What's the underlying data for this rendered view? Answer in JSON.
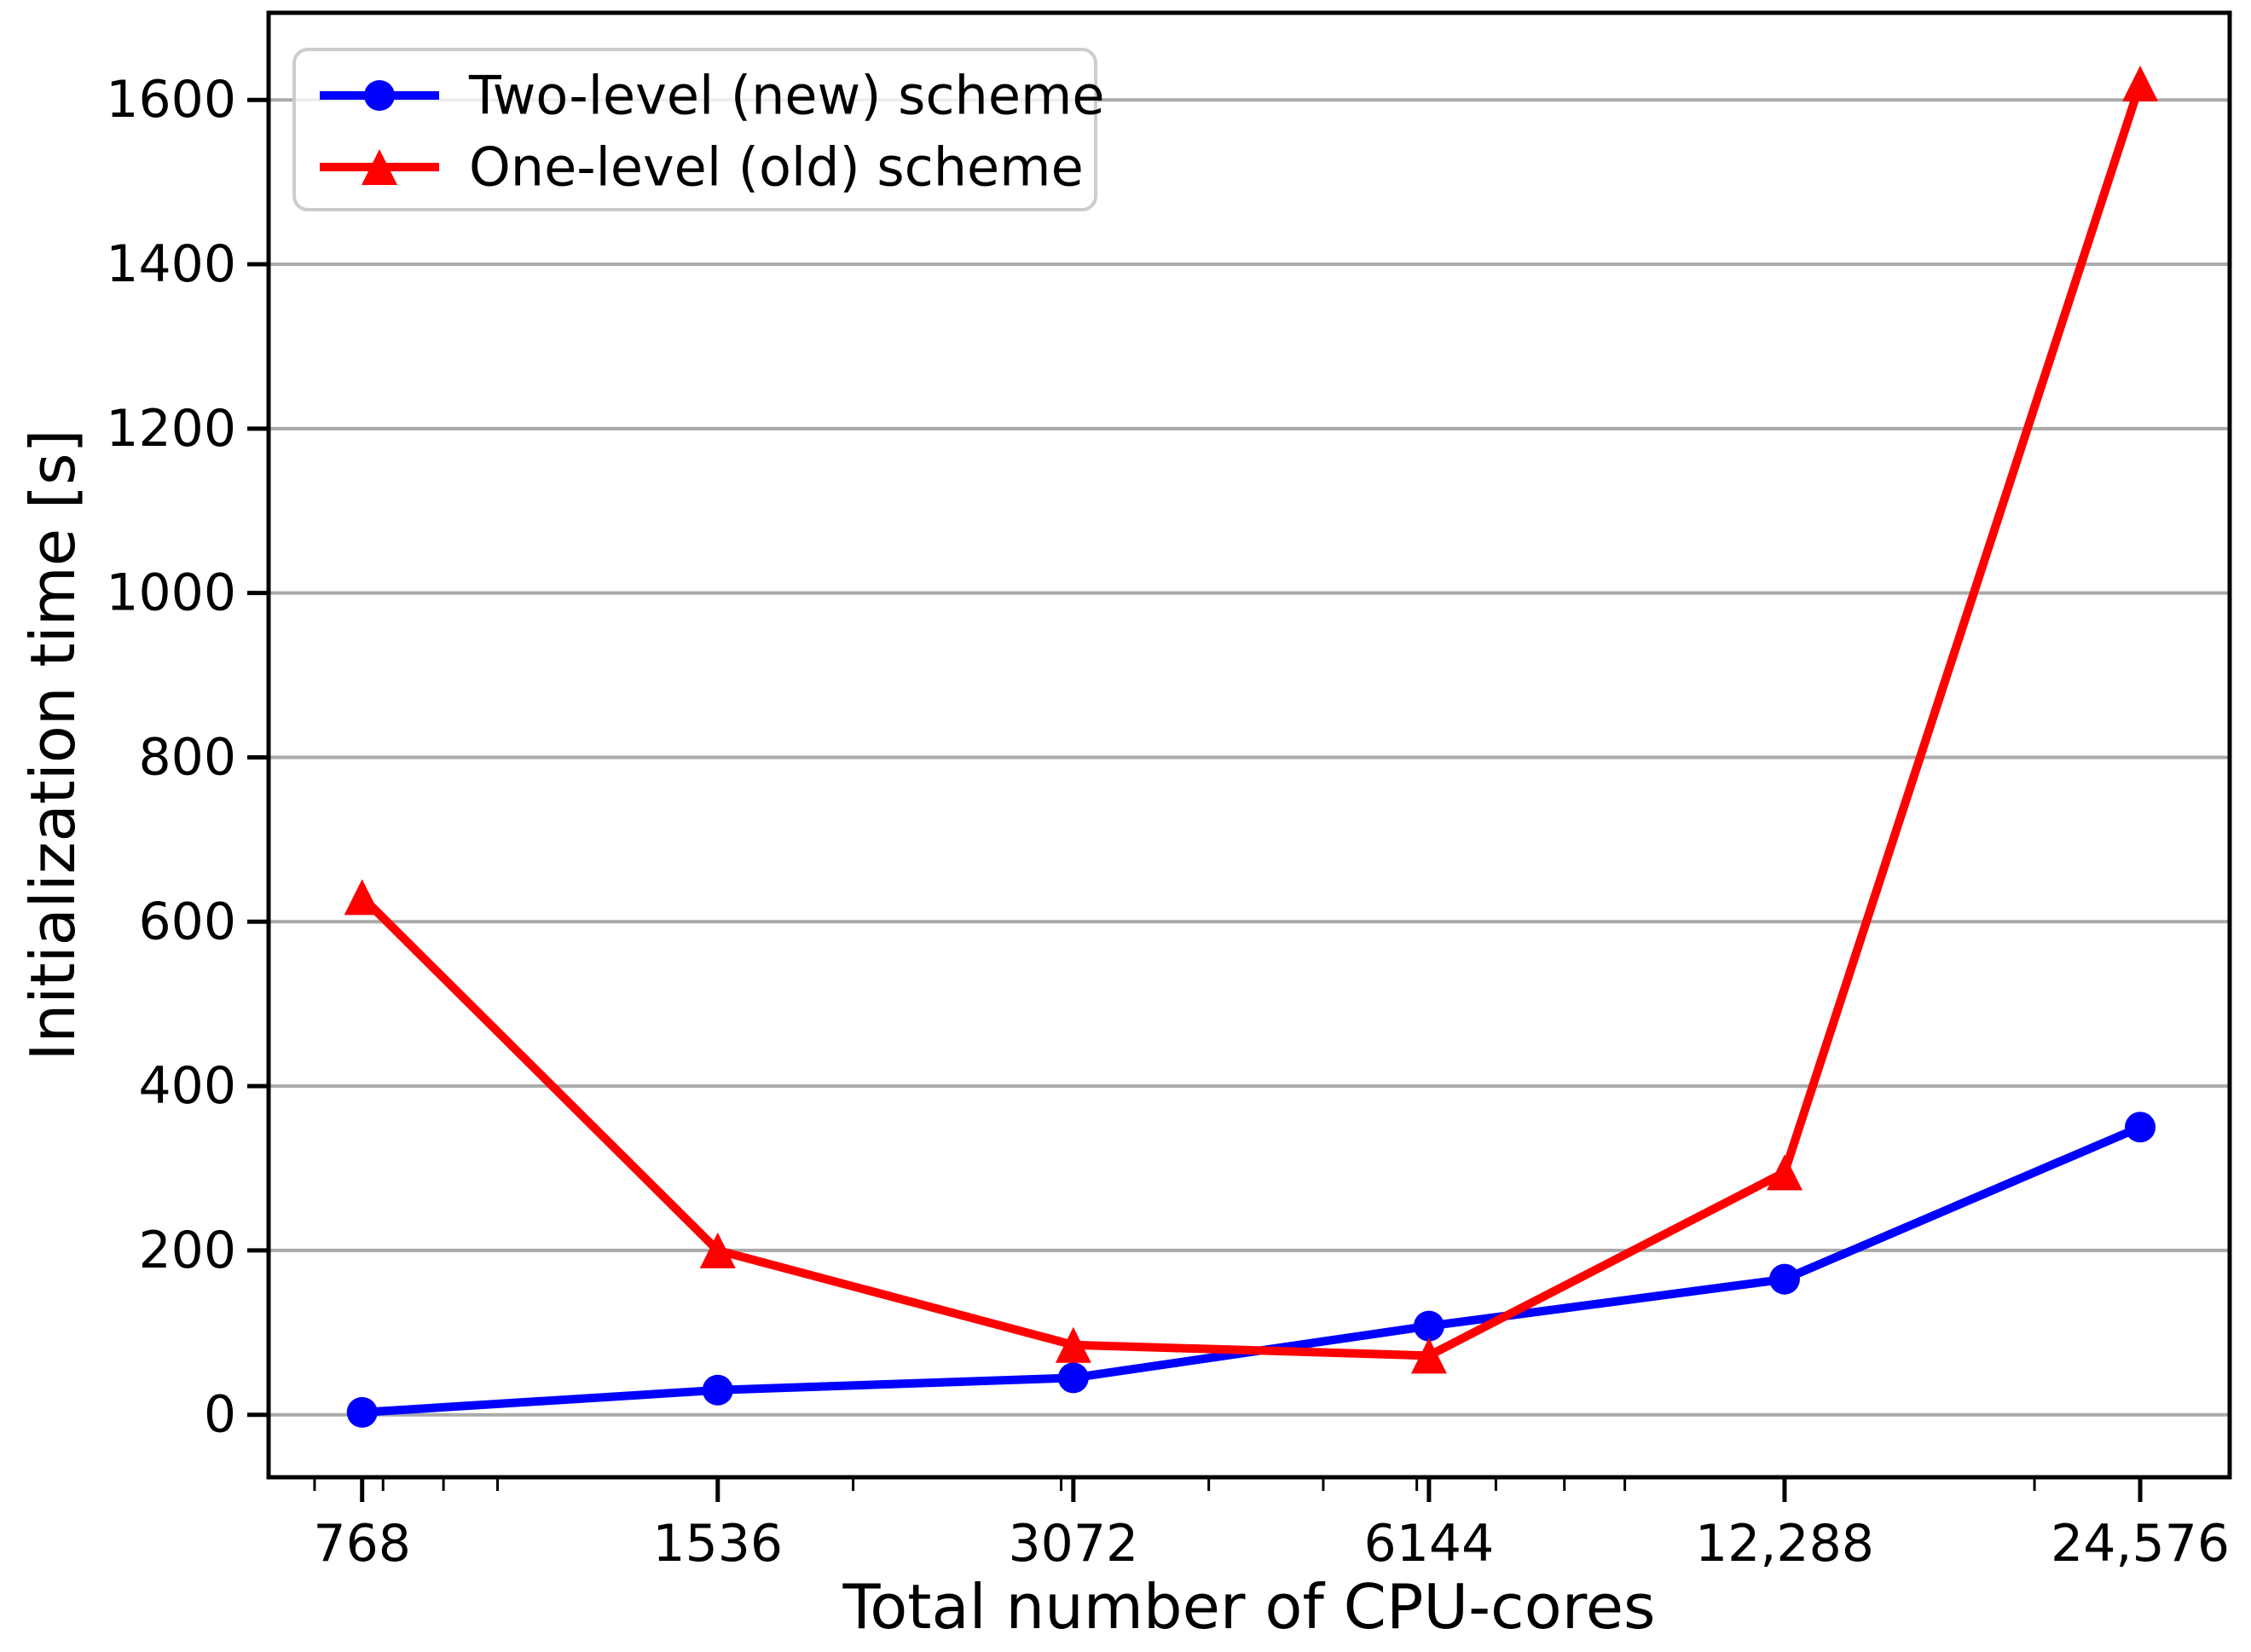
{
  "chart_data": {
    "type": "line",
    "title": "",
    "xlabel": "Total number of CPU-cores",
    "ylabel": "Initialization time [s]",
    "x_scale": "log",
    "x": [
      768,
      1536,
      3072,
      6144,
      12288,
      24576
    ],
    "x_tick_labels": [
      "768",
      "1536",
      "3072",
      "6144",
      "12,288",
      "24,576"
    ],
    "x_minor_ticks": [
      700,
      800,
      900,
      1000,
      2000,
      3000,
      4000,
      5000,
      6000,
      7000,
      8000,
      9000,
      20000
    ],
    "y_ticks": [
      0,
      200,
      400,
      600,
      800,
      1000,
      1200,
      1400,
      1600
    ],
    "xlim": [
      640,
      29260
    ],
    "ylim": [
      -76,
      1706
    ],
    "grid": "horizontal-only",
    "legend_position": "upper-left",
    "series": [
      {
        "name": "Two-level (new) scheme",
        "color": "#0000ff",
        "marker": "circle",
        "values": [
          3,
          30,
          45,
          108,
          165,
          350
        ]
      },
      {
        "name": "One-level (old) scheme",
        "color": "#ff0000",
        "marker": "triangle-up",
        "values": [
          630,
          200,
          85,
          72,
          295,
          1620
        ]
      }
    ],
    "colors": {
      "grid": "#aaaaaa",
      "axes": "#000000",
      "legend_border": "#cccccc",
      "text": "#000000",
      "background": "#ffffff"
    }
  }
}
